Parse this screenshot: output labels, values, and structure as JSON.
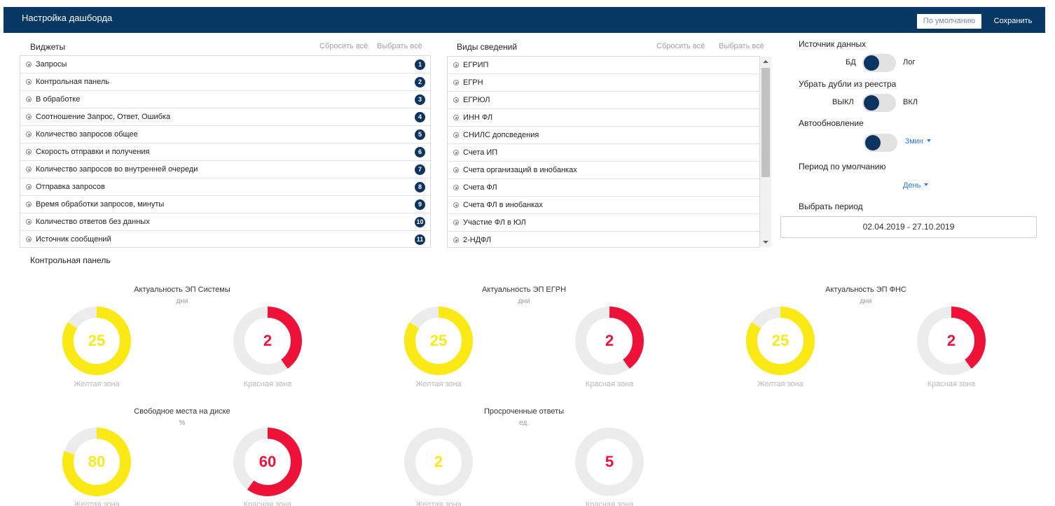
{
  "header": {
    "title": "Настройка дашборда",
    "default_label": "По умолчанию",
    "save_label": "Сохранить"
  },
  "widgets": {
    "title": "Виджеты",
    "reset_label": "Сбросить всё",
    "select_label": "Выбрать всё",
    "items": [
      {
        "label": "Запросы",
        "num": "1"
      },
      {
        "label": "Контрольная панель",
        "num": "2"
      },
      {
        "label": "В обработке",
        "num": "3"
      },
      {
        "label": "Соотношение Запрос, Ответ, Ошибка",
        "num": "4"
      },
      {
        "label": "Количество запросов общее",
        "num": "5"
      },
      {
        "label": "Скорость отправки и получения",
        "num": "6"
      },
      {
        "label": "Количество запросов во внутренней очереди",
        "num": "7"
      },
      {
        "label": "Отправка запросов",
        "num": "8"
      },
      {
        "label": "Время обработки запросов, минуты",
        "num": "9"
      },
      {
        "label": "Количество ответов без данных",
        "num": "10"
      },
      {
        "label": "Источник сообщений",
        "num": "11"
      }
    ]
  },
  "info_types": {
    "title": "Виды сведений",
    "reset_label": "Сбросить всё",
    "select_label": "Выбрать всё",
    "items": [
      "ЕГРИП",
      "ЕГРН",
      "ЕГРЮЛ",
      "ИНН ФЛ",
      "СНИЛС допсведения",
      "Счета ИП",
      "Счета организаций в инобанках",
      "Счета ФЛ",
      "Счета ФЛ в инобанках",
      "Участие ФЛ в ЮЛ",
      "2-НДФЛ"
    ]
  },
  "settings": {
    "source_label": "Источник данных",
    "source_left": "БД",
    "source_right": "Лог",
    "dedup_label": "Убрать дубли из реестра",
    "dedup_left": "ВЫКЛ",
    "dedup_right": "ВКЛ",
    "autoupdate_label": "Автообновление",
    "autoupdate_value": "3мин",
    "period_label": "Период по умолчанию",
    "period_value": "День",
    "select_period_label": "Выбрать период",
    "period_range": "02.04.2019 - 27.10.2019"
  },
  "control_panel": {
    "title": "Контрольная панель",
    "groups": [
      {
        "title": "Актуальность ЭП Системы",
        "unit": "дни"
      },
      {
        "title": "Актуальность ЭП ЕГРН",
        "unit": "дни"
      },
      {
        "title": "Актуальность ЭП ФНС",
        "unit": "дни"
      },
      {
        "title": "Свободное места на диске",
        "unit": "%"
      },
      {
        "title": "Просроченные ответы",
        "unit": "ед."
      }
    ],
    "gauges": [
      {
        "value": "25",
        "caption": "Желтая зона",
        "color": "#fbe915",
        "fill": 0.84
      },
      {
        "value": "2",
        "caption": "Красная зона",
        "color": "#ee1138",
        "fill": 0.4
      },
      {
        "value": "25",
        "caption": "Желтая зона",
        "color": "#fbe915",
        "fill": 0.84
      },
      {
        "value": "2",
        "caption": "Красная зона",
        "color": "#ee1138",
        "fill": 0.4
      },
      {
        "value": "25",
        "caption": "Желтая зона",
        "color": "#fbe915",
        "fill": 0.84
      },
      {
        "value": "2",
        "caption": "Красная зона",
        "color": "#ee1138",
        "fill": 0.4
      },
      {
        "value": "80",
        "caption": "Желтая зона",
        "color": "#fbe915",
        "fill": 0.8
      },
      {
        "value": "60",
        "caption": "Красная зона",
        "color": "#ee1138",
        "fill": 0.6
      },
      {
        "value": "2",
        "caption": "Желтая зона",
        "color": "#fbe915",
        "fill": 0.0
      },
      {
        "value": "5",
        "caption": "Красная зона",
        "color": "#ee1138",
        "fill": 0.0
      }
    ]
  },
  "colors": {
    "header_bg": "#073763",
    "badge_bg": "#0b3560",
    "accent_link": "#2a7ad8",
    "yellow": "#fbe915",
    "red": "#ee1138"
  }
}
